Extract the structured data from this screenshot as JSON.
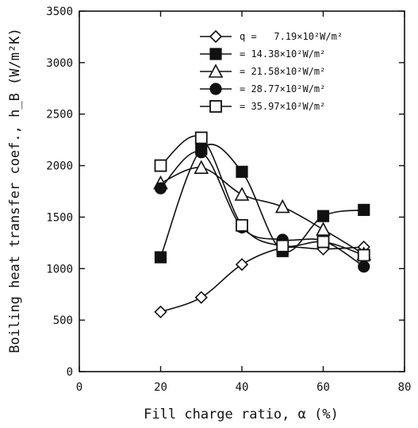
{
  "chart_data": {
    "type": "line",
    "xlabel": "Fill charge ratio, α (%)",
    "ylabel": "Boiling heat transfer coef., h_B (W/m²K)",
    "xlim": [
      0,
      80
    ],
    "ylim": [
      0,
      3500
    ],
    "xticks": [
      0,
      20,
      40,
      60,
      80
    ],
    "yticks": [
      0,
      500,
      1000,
      1500,
      2000,
      2500,
      3000,
      3500
    ],
    "grid": false,
    "legend_position": "top-right",
    "x": [
      20,
      30,
      40,
      50,
      60,
      70
    ],
    "series": [
      {
        "name": "q =   7.19×10²W/m²",
        "marker": "diamond-open",
        "values": [
          580,
          720,
          1040,
          1200,
          1190,
          1210
        ]
      },
      {
        "name": "= 14.38×10²W/m²",
        "marker": "square-filled",
        "values": [
          1110,
          2160,
          1940,
          1170,
          1510,
          1570
        ]
      },
      {
        "name": "= 21.58×10²W/m²",
        "marker": "triangle-open",
        "values": [
          1830,
          1980,
          1720,
          1600,
          1380,
          1140
        ]
      },
      {
        "name": "= 28.77×10²W/m²",
        "marker": "circle-filled",
        "values": [
          1780,
          2130,
          1400,
          1280,
          1270,
          1020
        ]
      },
      {
        "name": "= 35.97×10²W/m²",
        "marker": "square-open",
        "values": [
          2000,
          2270,
          1420,
          1220,
          1260,
          1130
        ]
      }
    ]
  }
}
